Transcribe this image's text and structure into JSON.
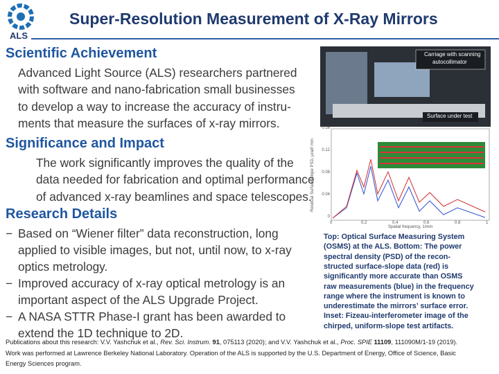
{
  "header": {
    "logo_text": "ALS",
    "title": "Super-Resolution Measurement of X-Ray Mirrors"
  },
  "sections": [
    {
      "heading": "Scientific Achievement",
      "lines": [
        "Advanced Light Source (ALS) researchers partnered",
        "with software and nano-fabrication small businesses",
        "to develop a way to increase the accuracy of instru-",
        "ments that measure the surfaces of x-ray mirrors."
      ]
    },
    {
      "heading": "Significance and Impact",
      "lines": [
        "The work significantly improves the quality of the",
        "data needed for fabrication and optimal performance",
        "of advanced x-ray beamlines and space telescopes."
      ]
    },
    {
      "heading": "Research Details",
      "bullets": [
        [
          "Based on “Wiener filter” data reconstruction, long",
          "applied to visible images, but not, until now, to x-ray",
          "optics metrology."
        ],
        [
          "Improved accuracy of x-ray optical metrology is an",
          "important aspect of the ALS Upgrade Project."
        ],
        [
          "A NASA STTR Phase-I grant has been awarded to",
          "extend the 1D technique to 2D."
        ]
      ]
    }
  ],
  "bullet_marker": "−",
  "figure": {
    "photo_labels": [
      "Carriage with scanning",
      "autocollimator",
      "Surface under test"
    ],
    "plot": {
      "y_label": "Residual Surface Slope PSD, μrad² mm",
      "x_label": "Spatial frequency, 1/mm",
      "yticks": [
        "0.16",
        "0.12",
        "0.08",
        "0.04",
        "0"
      ],
      "xticks": [
        "0",
        "0.2",
        "0.4",
        "0.6",
        "0.8",
        "1"
      ]
    },
    "caption": [
      "Top: Optical Surface Measuring System",
      "(OSMS) at the ALS. Bottom: The power",
      "spectral density (PSD) of the recon-",
      "structed surface-slope data (red) is",
      "significantly more accurate than OSMS",
      "raw measurements (blue) in the frequency",
      "range where the instrument is known to",
      "underestimate the mirrors’ surface error.",
      "Inset: Fizeau-interferometer image of the",
      "chirped, uniform-slope test artifacts."
    ]
  },
  "footer": {
    "lines": [
      [
        {
          "text": "Publications about this research: V.V. Yashchuk et al., ",
          "style": "normal"
        },
        {
          "text": "Rev. Sci. Instrum.",
          "style": "italic"
        },
        {
          "text": " ",
          "style": "normal"
        },
        {
          "text": "91",
          "style": "bold"
        },
        {
          "text": ", 075113 (2020); and V.V. Yashchuk et al., ",
          "style": "normal"
        },
        {
          "text": "Proc. SPIE ",
          "style": "italic"
        },
        {
          "text": "11109",
          "style": "bold"
        },
        {
          "text": ", 111090M/1-19 (2019).",
          "style": "normal"
        }
      ],
      [
        {
          "text": "Work was performed at Lawrence Berkeley National Laboratory. Operation of the ALS is supported by the U.S. Department of Energy, Office of Science, Basic",
          "style": "normal"
        }
      ],
      [
        {
          "text": "Energy Sciences program.",
          "style": "normal"
        }
      ]
    ]
  }
}
